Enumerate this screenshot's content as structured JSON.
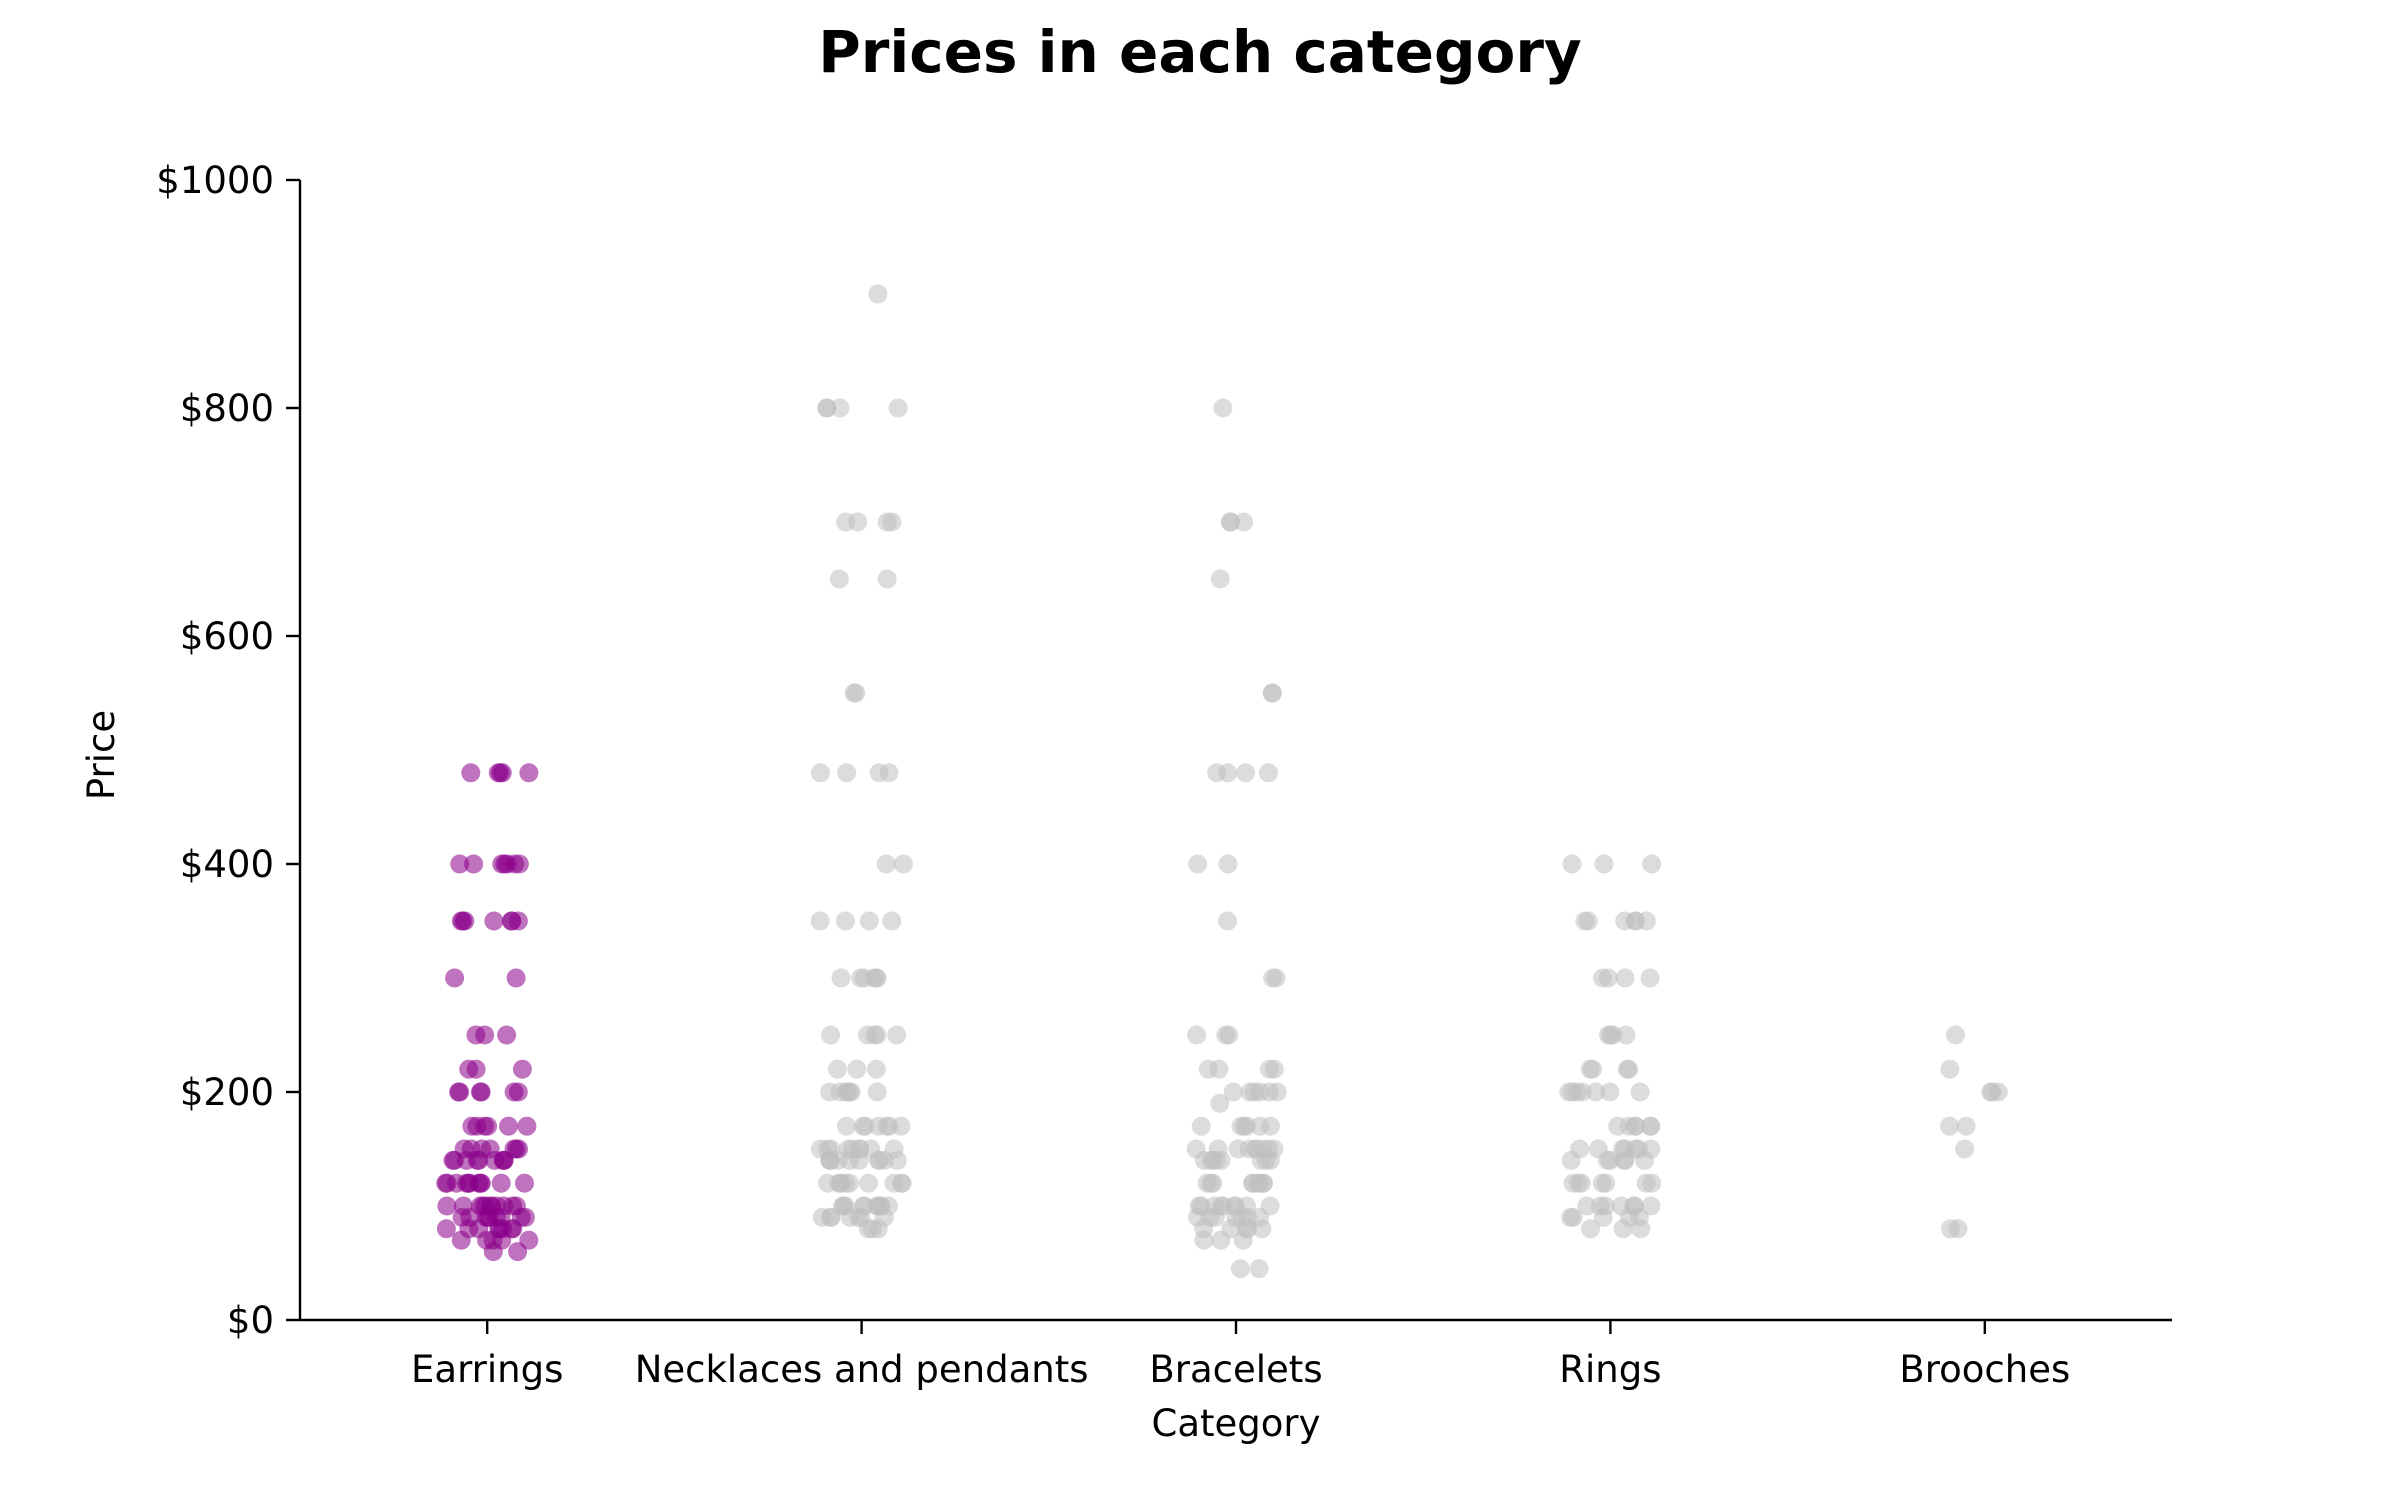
{
  "chart_data": {
    "type": "scatter",
    "title": "Prices in each category",
    "xlabel": "Category",
    "ylabel": "Price",
    "categories": [
      "Earrings",
      "Necklaces and pendants",
      "Bracelets",
      "Rings",
      "Brooches"
    ],
    "ylim": [
      0,
      1000
    ],
    "yticks": [
      0,
      200,
      400,
      600,
      800,
      1000
    ],
    "ytick_labels": [
      "$0",
      "$200",
      "$400",
      "$600",
      "$800",
      "$1000"
    ],
    "grid": false,
    "highlight_category": "Earrings",
    "colors": {
      "highlight": "#8B008B",
      "other": "#BFBFBF",
      "axis": "#000000"
    },
    "series": [
      {
        "category": "Earrings",
        "values": [
          480,
          480,
          480,
          480,
          480,
          400,
          400,
          400,
          400,
          400,
          400,
          400,
          350,
          350,
          350,
          350,
          350,
          350,
          350,
          300,
          300,
          250,
          250,
          250,
          220,
          220,
          220,
          200,
          200,
          200,
          200,
          200,
          200,
          170,
          170,
          170,
          170,
          170,
          170,
          150,
          150,
          150,
          150,
          150,
          150,
          150,
          140,
          140,
          140,
          140,
          140,
          140,
          140,
          140,
          140,
          120,
          120,
          120,
          120,
          120,
          120,
          120,
          120,
          120,
          120,
          120,
          100,
          100,
          100,
          100,
          100,
          100,
          100,
          100,
          100,
          100,
          100,
          90,
          90,
          90,
          90,
          90,
          90,
          90,
          90,
          90,
          80,
          80,
          80,
          80,
          80,
          80,
          80,
          80,
          70,
          70,
          70,
          70,
          70,
          60,
          60
        ]
      },
      {
        "category": "Necklaces and pendants",
        "values": [
          900,
          800,
          800,
          800,
          800,
          700,
          700,
          700,
          700,
          650,
          650,
          550,
          550,
          480,
          480,
          480,
          480,
          400,
          400,
          350,
          350,
          350,
          350,
          300,
          300,
          300,
          300,
          300,
          300,
          250,
          250,
          250,
          250,
          250,
          220,
          220,
          220,
          200,
          200,
          200,
          200,
          200,
          200,
          200,
          170,
          170,
          170,
          170,
          170,
          170,
          170,
          150,
          150,
          150,
          150,
          150,
          150,
          150,
          150,
          150,
          140,
          140,
          140,
          140,
          140,
          140,
          140,
          140,
          140,
          140,
          120,
          120,
          120,
          120,
          120,
          120,
          120,
          120,
          120,
          120,
          100,
          100,
          100,
          100,
          100,
          100,
          100,
          100,
          100,
          100,
          90,
          90,
          90,
          90,
          90,
          90,
          90,
          80,
          80,
          80
        ]
      },
      {
        "category": "Bracelets",
        "values": [
          800,
          700,
          700,
          700,
          650,
          550,
          550,
          480,
          480,
          480,
          480,
          400,
          400,
          350,
          300,
          300,
          250,
          250,
          250,
          220,
          220,
          220,
          220,
          200,
          200,
          200,
          200,
          200,
          200,
          190,
          170,
          170,
          170,
          170,
          170,
          170,
          150,
          150,
          150,
          150,
          150,
          150,
          150,
          150,
          150,
          140,
          140,
          140,
          140,
          140,
          140,
          140,
          140,
          120,
          120,
          120,
          120,
          120,
          120,
          120,
          120,
          120,
          100,
          100,
          100,
          100,
          100,
          100,
          100,
          100,
          100,
          90,
          90,
          90,
          90,
          90,
          90,
          90,
          80,
          80,
          80,
          80,
          80,
          70,
          70,
          70,
          45,
          45
        ]
      },
      {
        "category": "Rings",
        "values": [
          400,
          400,
          400,
          350,
          350,
          350,
          350,
          350,
          350,
          300,
          300,
          300,
          300,
          250,
          250,
          250,
          250,
          220,
          220,
          220,
          220,
          200,
          200,
          200,
          200,
          200,
          200,
          200,
          170,
          170,
          170,
          170,
          170,
          170,
          150,
          150,
          150,
          150,
          150,
          150,
          150,
          140,
          140,
          140,
          140,
          140,
          140,
          120,
          120,
          120,
          120,
          120,
          120,
          120,
          100,
          100,
          100,
          100,
          100,
          100,
          100,
          90,
          90,
          90,
          90,
          90,
          80,
          80,
          80
        ]
      },
      {
        "category": "Brooches",
        "values": [
          250,
          220,
          200,
          200,
          200,
          170,
          170,
          150,
          80,
          80
        ]
      }
    ]
  }
}
